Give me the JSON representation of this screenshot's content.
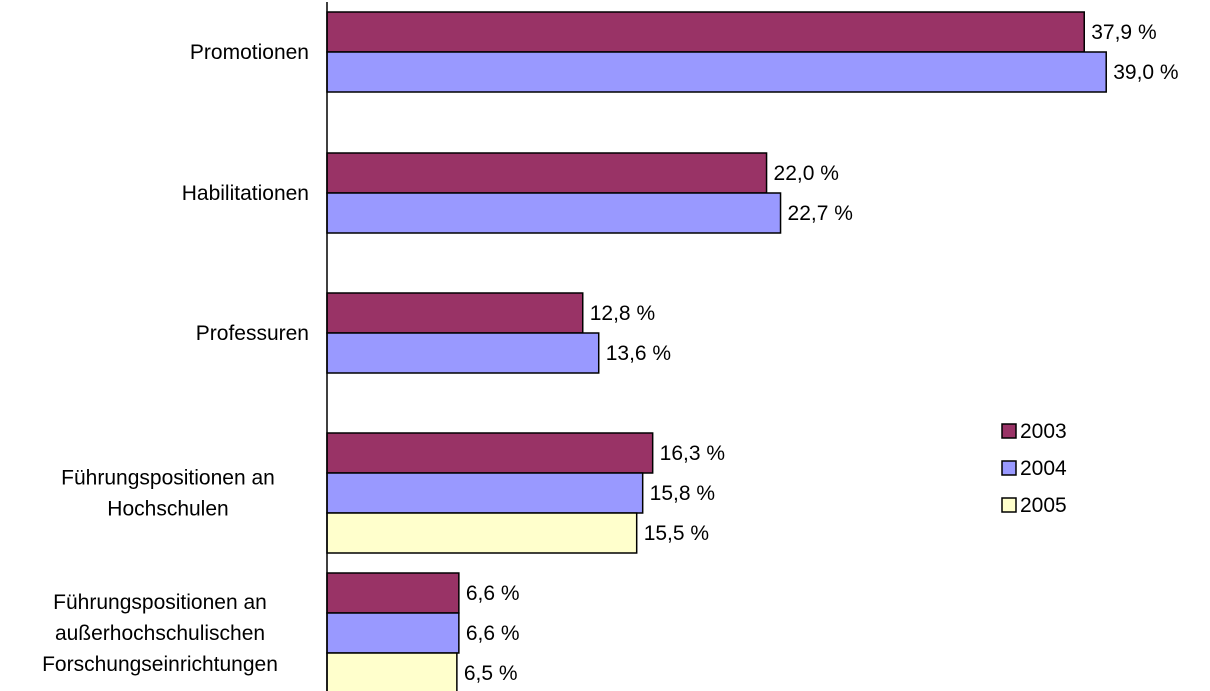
{
  "chart_data": {
    "type": "bar",
    "orientation": "horizontal",
    "categories": [
      [
        "Promotionen"
      ],
      [
        "Habilitationen"
      ],
      [
        "Professuren"
      ],
      [
        "Führungspositionen an",
        "Hochschulen"
      ],
      [
        "Führungspositionen an",
        "außerhochschulischen",
        "Forschungseinrichtungen"
      ]
    ],
    "series": [
      {
        "name": "2003",
        "color": "#993366",
        "values": [
          37.9,
          22.0,
          12.8,
          16.3,
          6.6
        ],
        "labels": [
          "37,9 %",
          "22,0 %",
          "12,8 %",
          "16,3 %",
          "6,6 %"
        ]
      },
      {
        "name": "2004",
        "color": "#9999ff",
        "values": [
          39.0,
          22.7,
          13.6,
          15.8,
          6.6
        ],
        "labels": [
          "39,0 %",
          "22,7 %",
          "13,6 %",
          "15,8 %",
          "6,6 %"
        ]
      },
      {
        "name": "2005",
        "color": "#ffffcc",
        "values": [
          null,
          null,
          null,
          15.5,
          6.5
        ],
        "labels": [
          null,
          null,
          null,
          "15,5 %",
          "6,5 %"
        ]
      }
    ],
    "xlim": [
      0,
      40
    ],
    "grid": false,
    "legend": "right"
  }
}
